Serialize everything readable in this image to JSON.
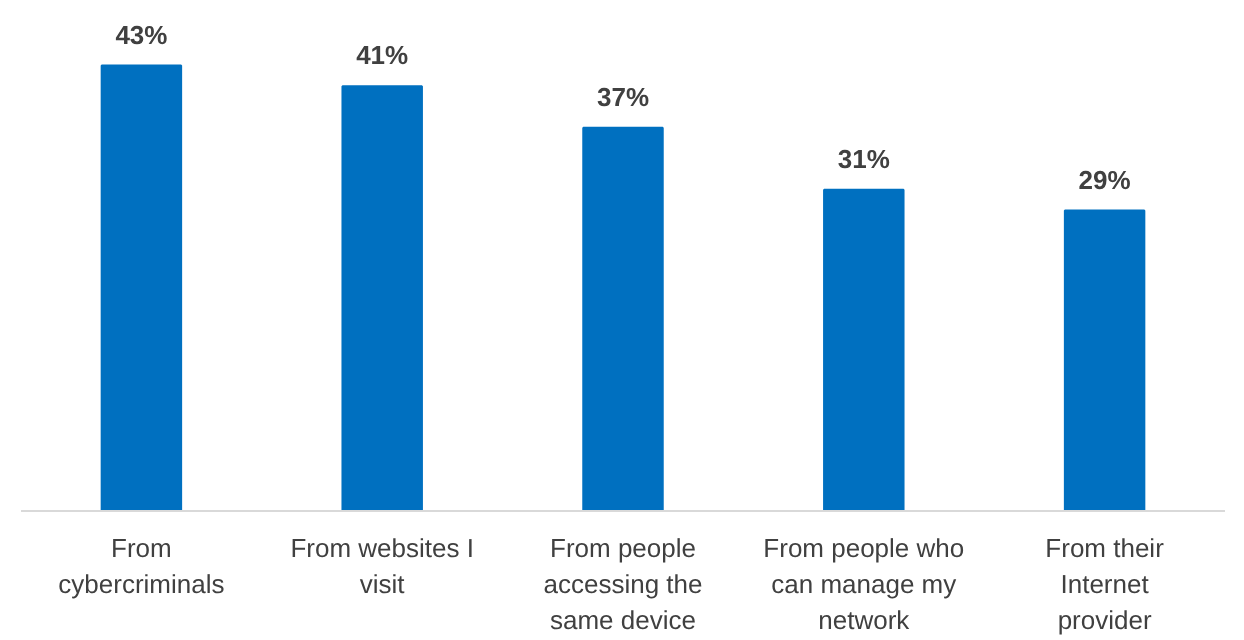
{
  "chart_data": {
    "type": "bar",
    "categories": [
      "From cybercriminals",
      "From websites I visit",
      "From people accessing the same device",
      "From people who can manage my network",
      "From their Internet provider"
    ],
    "values": [
      43,
      41,
      37,
      31,
      29
    ],
    "color": "#0070c0",
    "value_labels": [
      "43%",
      "41%",
      "37%",
      "31%",
      "29%"
    ],
    "grid": false
  }
}
